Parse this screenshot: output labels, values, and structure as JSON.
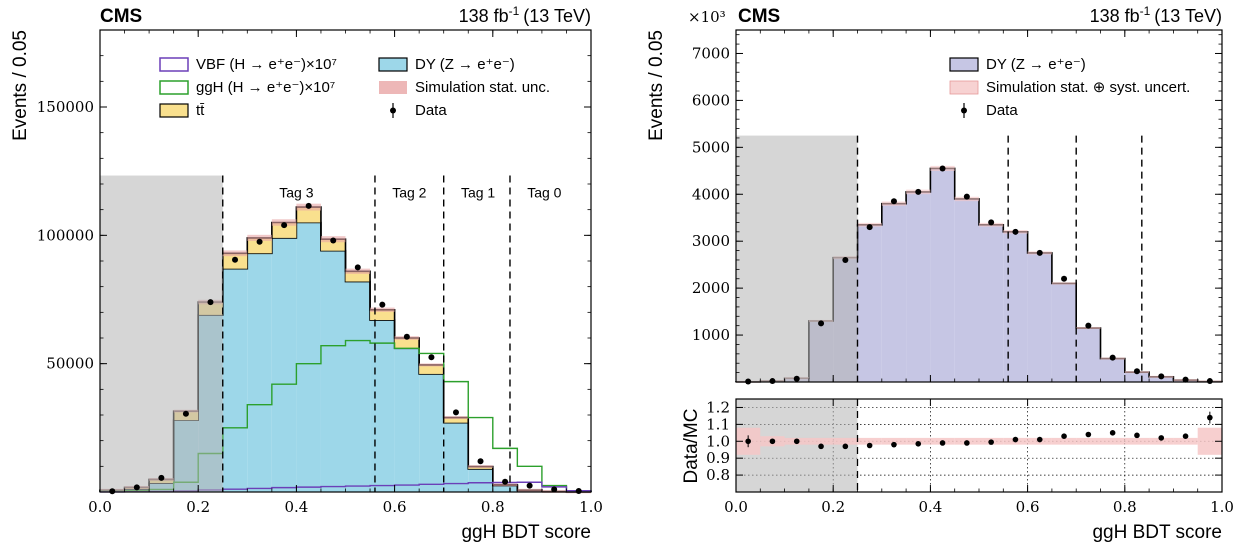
{
  "lumi": {
    "text": "138 fb",
    "sup": "-1",
    "energy": "(13 TeV)"
  },
  "cms_label": "CMS",
  "chart_data": [
    {
      "type": "bar",
      "panel": "left",
      "ylabel": "Events / 0.05",
      "xlabel": "ggH BDT score",
      "xlim": [
        0,
        1
      ],
      "ylim": [
        0,
        180000
      ],
      "yticks": [
        50000,
        100000,
        150000
      ],
      "xticks": [
        0.0,
        0.2,
        0.4,
        0.6,
        0.8,
        1.0
      ],
      "bin_edges": [
        0.0,
        0.05,
        0.1,
        0.15,
        0.2,
        0.25,
        0.3,
        0.35,
        0.4,
        0.45,
        0.5,
        0.55,
        0.6,
        0.65,
        0.7,
        0.75,
        0.8,
        0.85,
        0.9,
        0.95,
        1.0
      ],
      "excluded_region": [
        0.0,
        0.25
      ],
      "boundaries": [
        0.25,
        0.56,
        0.7,
        0.835
      ],
      "tags": [
        {
          "label": "Tag 3",
          "x": 0.4
        },
        {
          "label": "Tag 2",
          "x": 0.63
        },
        {
          "label": "Tag 1",
          "x": 0.77
        },
        {
          "label": "Tag 0",
          "x": 0.905
        }
      ],
      "stack": [
        {
          "name": "DY (Z → e⁺e⁻)",
          "color": "#9dd7e9",
          "values": [
            400,
            1200,
            3500,
            28000,
            69000,
            87000,
            93000,
            99000,
            105000,
            94000,
            82000,
            67000,
            56000,
            46000,
            27000,
            9000,
            2500,
            600,
            150,
            30
          ]
        },
        {
          "name": "tt̄",
          "color": "#f9e08e",
          "values": [
            300,
            600,
            1400,
            3500,
            5000,
            6000,
            6000,
            6000,
            6000,
            4500,
            4000,
            4000,
            4000,
            3500,
            2000,
            900,
            300,
            100,
            40,
            10
          ]
        }
      ],
      "lines": [
        {
          "name": "ggH (H → e⁺e⁻)×10⁷",
          "color": "#2ca02c",
          "values": [
            200,
            500,
            1000,
            3800,
            15000,
            25000,
            34000,
            42000,
            50000,
            57000,
            59000,
            58000,
            56000,
            54000,
            43000,
            29000,
            17000,
            10000,
            2500,
            500
          ]
        },
        {
          "name": "VBF (H → e⁺e⁻)×10⁷",
          "color": "#6b3fb8",
          "values": [
            50,
            100,
            200,
            400,
            800,
            1100,
            1400,
            1700,
            1900,
            2100,
            2300,
            2500,
            2700,
            3000,
            3300,
            3600,
            3700,
            3800,
            2000,
            500
          ]
        }
      ],
      "data": [
        300,
        1800,
        5500,
        30500,
        74000,
        90500,
        97500,
        104000,
        111500,
        98000,
        87500,
        73000,
        60500,
        52500,
        31000,
        12000,
        4000,
        2500,
        1000,
        400
      ],
      "legend": [
        {
          "label": "VBF (H → e⁺e⁻)×10⁷",
          "kind": "line",
          "color": "#6b3fb8"
        },
        {
          "label": "ggH (H → e⁺e⁻)×10⁷",
          "kind": "line",
          "color": "#2ca02c"
        },
        {
          "label": "tt̄",
          "kind": "box",
          "color": "#f9e08e"
        },
        {
          "label": "DY (Z → e⁺e⁻)",
          "kind": "box",
          "color": "#9dd7e9"
        },
        {
          "label": "Simulation stat. unc.",
          "kind": "band",
          "color": "#e8a5a5"
        },
        {
          "label": "Data",
          "kind": "point",
          "color": "#000000"
        }
      ]
    },
    {
      "type": "bar",
      "panel": "right",
      "ylabel": "Events / 0.05",
      "xlabel": "ggH BDT score",
      "scale_label": "×10³",
      "xlim": [
        0,
        1
      ],
      "ylim": [
        0,
        7500
      ],
      "yticks": [
        1000,
        2000,
        3000,
        4000,
        5000,
        6000,
        7000
      ],
      "xticks": [
        0.0,
        0.2,
        0.4,
        0.6,
        0.8,
        1.0
      ],
      "bin_edges": [
        0.0,
        0.05,
        0.1,
        0.15,
        0.2,
        0.25,
        0.3,
        0.35,
        0.4,
        0.45,
        0.5,
        0.55,
        0.6,
        0.65,
        0.7,
        0.75,
        0.8,
        0.85,
        0.9,
        0.95,
        1.0
      ],
      "excluded_region": [
        0.0,
        0.25
      ],
      "boundaries": [
        0.25,
        0.56,
        0.7,
        0.835
      ],
      "stack": [
        {
          "name": "DY (Z → e⁺e⁻)",
          "color": "#c6c6e4",
          "values": [
            5,
            20,
            80,
            1300,
            2650,
            3350,
            3800,
            4050,
            4550,
            3900,
            3350,
            3200,
            2750,
            2100,
            1150,
            500,
            210,
            110,
            40,
            10
          ]
        }
      ],
      "data": [
        10,
        20,
        70,
        1250,
        2600,
        3300,
        3850,
        4050,
        4550,
        3950,
        3400,
        3200,
        2750,
        2200,
        1200,
        520,
        230,
        120,
        50,
        20
      ],
      "legend": [
        {
          "label": "DY (Z → e⁺e⁻)",
          "kind": "box",
          "color": "#c6c6e4"
        },
        {
          "label": "Simulation stat. ⊕ syst. uncert.",
          "kind": "band",
          "color": "#f6c7c7"
        },
        {
          "label": "Data",
          "kind": "point",
          "color": "#000000"
        }
      ],
      "ratio": {
        "ylabel": "Data/MC",
        "ylim": [
          0.7,
          1.25
        ],
        "yticks": [
          0.8,
          0.9,
          1.0,
          1.1,
          1.2
        ],
        "values": [
          1.0,
          1.0,
          1.0,
          0.97,
          0.97,
          0.975,
          0.98,
          0.985,
          0.99,
          0.99,
          0.995,
          1.01,
          1.01,
          1.03,
          1.04,
          1.05,
          1.035,
          1.02,
          1.03,
          1.14
        ],
        "band_halfwidth": [
          0.08,
          0.03,
          0.02,
          0.02,
          0.02,
          0.02,
          0.02,
          0.02,
          0.02,
          0.02,
          0.02,
          0.02,
          0.02,
          0.02,
          0.02,
          0.02,
          0.02,
          0.02,
          0.02,
          0.08
        ]
      }
    }
  ]
}
